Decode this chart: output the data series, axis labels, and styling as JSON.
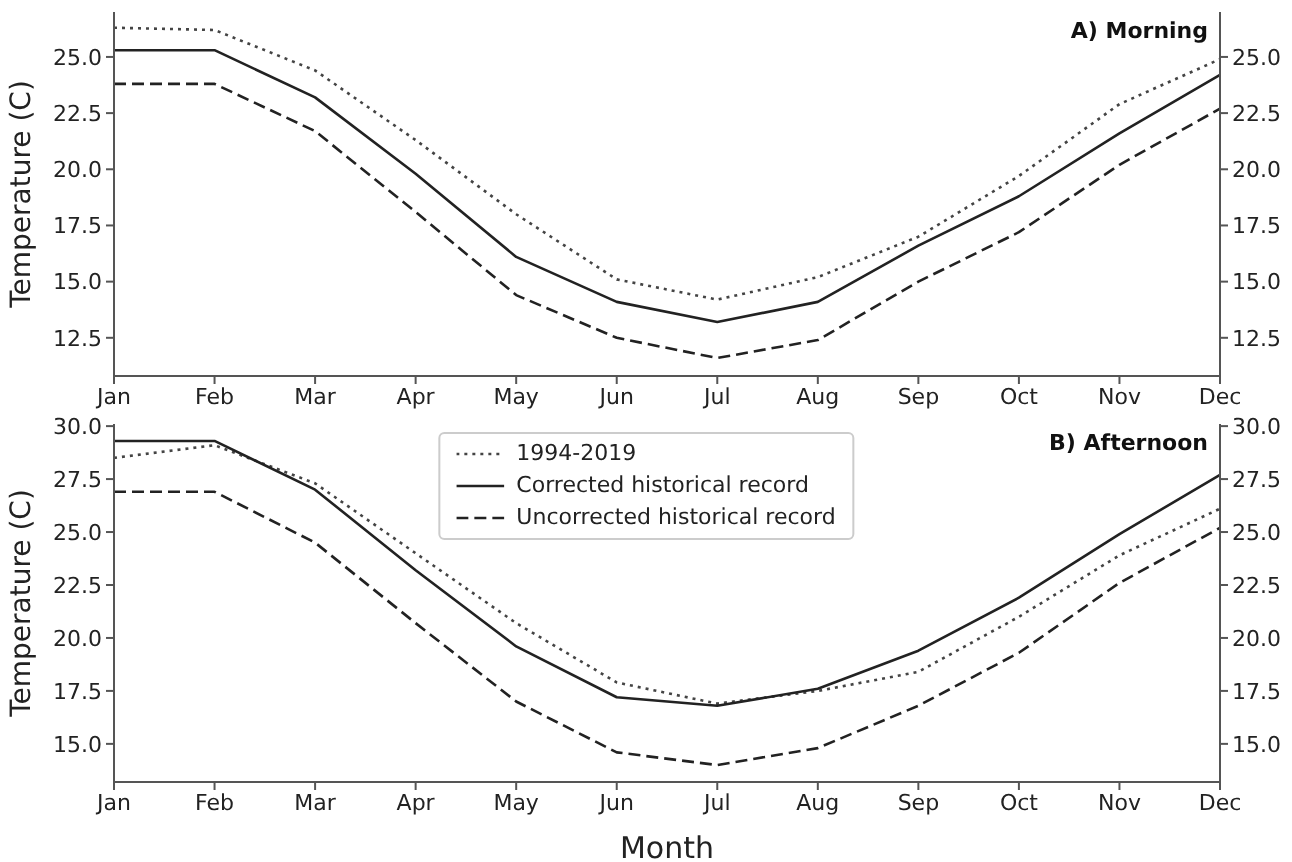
{
  "chart_data": [
    {
      "type": "line",
      "title": "A) Morning",
      "ylabel": "Temperature (C)",
      "categories": [
        "Jan",
        "Feb",
        "Mar",
        "Apr",
        "May",
        "Jun",
        "Jul",
        "Aug",
        "Sep",
        "Oct",
        "Nov",
        "Dec"
      ],
      "ylim": [
        10.8,
        27.0
      ],
      "yticks": [
        12.5,
        {
          "value": 15,
          "label": "15.0"
        },
        17.5,
        {
          "value": 20,
          "label": "20.0"
        },
        22.5,
        {
          "value": 25,
          "label": "25.0"
        }
      ],
      "y2lim": [
        10.8,
        27.0
      ],
      "y2ticks": [
        12.5,
        {
          "value": 15,
          "label": "15.0"
        },
        17.5,
        {
          "value": 20,
          "label": "20.0"
        },
        22.5,
        {
          "value": 25,
          "label": "25.0"
        }
      ],
      "grid": false,
      "legend": false,
      "series": [
        {
          "color": "#444444",
          "line_style": "dotted",
          "values": [
            26.3,
            26.2,
            24.4,
            21.3,
            18.0,
            15.1,
            14.2,
            15.2,
            17.0,
            19.7,
            22.9,
            24.9
          ]
        },
        {
          "color": "#222222",
          "line_style": "solid",
          "values": [
            25.3,
            25.3,
            23.2,
            19.8,
            16.1,
            14.1,
            13.2,
            14.1,
            16.6,
            18.8,
            21.6,
            24.2
          ]
        },
        {
          "color": "#222222",
          "line_style": "dashed",
          "values": [
            23.8,
            23.8,
            21.7,
            18.1,
            14.4,
            12.5,
            11.6,
            12.4,
            15.0,
            17.2,
            20.2,
            22.7
          ]
        }
      ]
    },
    {
      "type": "line",
      "title": "B) Afternoon",
      "ylabel": "Temperature (C)",
      "xlabel": "Month",
      "categories": [
        "Jan",
        "Feb",
        "Mar",
        "Apr",
        "May",
        "Jun",
        "Jul",
        "Aug",
        "Sep",
        "Oct",
        "Nov",
        "Dec"
      ],
      "ylim": [
        13.2,
        30.1
      ],
      "yticks": [
        {
          "value": 15,
          "label": "15.0"
        },
        17.5,
        {
          "value": 20,
          "label": "20.0"
        },
        22.5,
        {
          "value": 25,
          "label": "25.0"
        },
        27.5,
        {
          "value": 30,
          "label": "30.0"
        }
      ],
      "y2lim": [
        13.2,
        30.1
      ],
      "y2ticks": [
        {
          "value": 15,
          "label": "15.0"
        },
        17.5,
        {
          "value": 20,
          "label": "20.0"
        },
        22.5,
        {
          "value": 25,
          "label": "25.0"
        },
        27.5,
        {
          "value": 30,
          "label": "30.0"
        }
      ],
      "grid": false,
      "legend": "top",
      "series": [
        {
          "name": "1994-2019",
          "color": "#444444",
          "line_style": "dotted",
          "values": [
            28.5,
            29.1,
            27.3,
            24.0,
            20.7,
            17.9,
            16.9,
            17.5,
            18.4,
            21.0,
            23.9,
            26.1
          ]
        },
        {
          "name": "Corrected historical record",
          "color": "#222222",
          "line_style": "solid",
          "values": [
            29.3,
            29.3,
            27.0,
            23.2,
            19.6,
            17.2,
            16.8,
            17.6,
            19.4,
            21.9,
            24.9,
            27.7
          ]
        },
        {
          "name": "Uncorrected historical record",
          "color": "#222222",
          "line_style": "dashed",
          "values": [
            26.9,
            26.9,
            24.5,
            20.7,
            17.0,
            14.6,
            14.0,
            14.8,
            16.8,
            19.3,
            22.6,
            25.2
          ]
        }
      ]
    }
  ]
}
